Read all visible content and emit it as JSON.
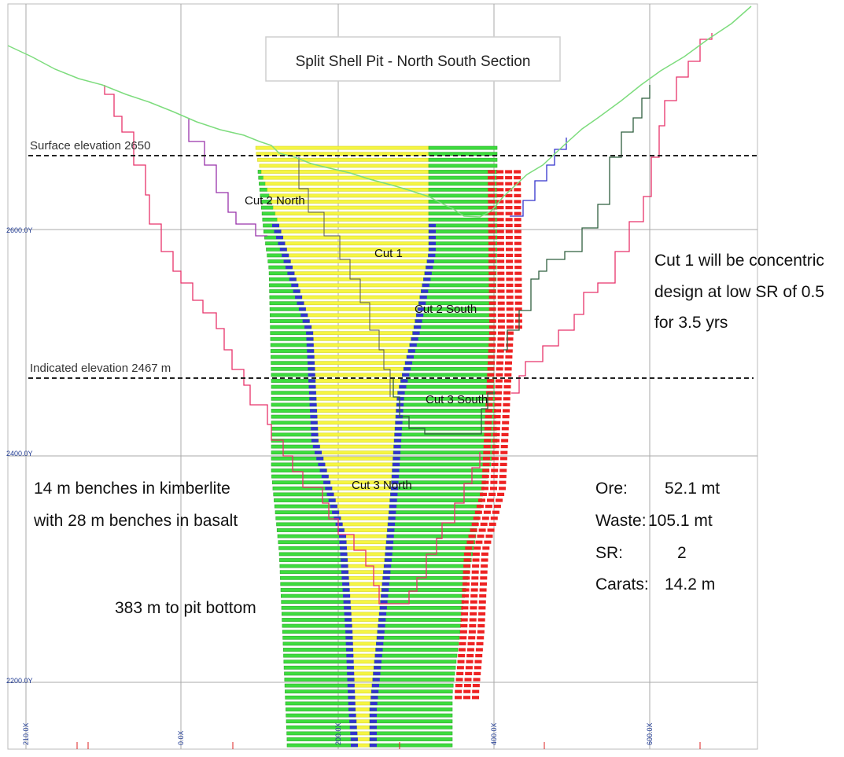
{
  "title": "Split Shell Pit - North South Section",
  "elevation_lines": [
    {
      "label": "Surface elevation 2650"
    },
    {
      "label": "Indicated elevation 2467 m"
    }
  ],
  "y_ticks": [
    "2600.0Y",
    "2400.0Y",
    "2200.0Y"
  ],
  "x_ticks": [
    "210.0X",
    "0.0X",
    "200.0X",
    "400.0X",
    "600.0X"
  ],
  "cut_labels": [
    "Cut 2 North",
    "Cut 1",
    "Cut 2 South",
    "Cut 3 South",
    "Cut 3 North"
  ],
  "annotations": {
    "cut1_note": [
      "Cut 1 will be concentric",
      "design at low SR of 0.5",
      "for 3.5 yrs"
    ],
    "benches": [
      "14 m benches in kimberlite",
      "with 28 m benches in basalt"
    ],
    "pit_depth": "383 m to pit bottom"
  },
  "stats": [
    {
      "label": "Ore:",
      "value": "52.1 mt"
    },
    {
      "label": "Waste:",
      "value": "105.1 mt"
    },
    {
      "label": "SR:",
      "value": "2"
    },
    {
      "label": "Carats:",
      "value": "14.2 m"
    }
  ],
  "colors": {
    "ore_block": "#f5f542",
    "waste_block": "#3ddc3d",
    "boundary_block": "#3333cc",
    "outer_block": "#ee2222",
    "pit_shell": "#e8336a",
    "cut2_shell": "#9933aa",
    "cut3_shell": "#2f5f3f",
    "topography": "#7ddc7d",
    "grid": "#aaaaaa"
  }
}
